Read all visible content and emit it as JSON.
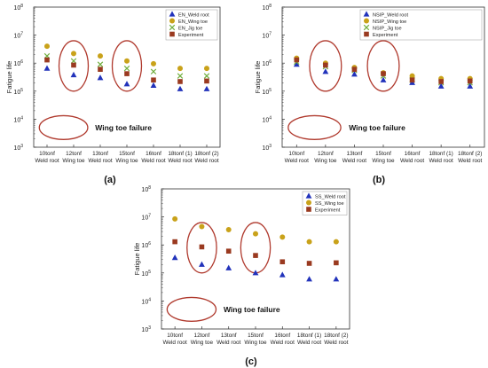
{
  "chart_data": [
    {
      "type": "scatter",
      "panel_label": "(a)",
      "ylabel": "Fatigue life",
      "yscale": "log",
      "ylim": [
        1000,
        100000000
      ],
      "categories": [
        [
          "10tonf",
          "Weld root"
        ],
        [
          "12tonf",
          "Wing toe"
        ],
        [
          "13tonf",
          "Weld root"
        ],
        [
          "15tonf",
          "Wing toe"
        ],
        [
          "16tonf",
          "Weld root"
        ],
        [
          "18tonf (1)",
          "Weld root"
        ],
        [
          "18tonf (2)",
          "Weld root"
        ]
      ],
      "series": [
        {
          "name": "EN_Weld root",
          "marker": "triangle",
          "color": "#2233bb",
          "values": [
            650000,
            380000,
            300000,
            180000,
            160000,
            120000,
            120000
          ]
        },
        {
          "name": "EN_Wing toe",
          "marker": "circle",
          "color": "#c9a21a",
          "values": [
            4000000,
            2200000,
            1800000,
            1200000,
            950000,
            650000,
            650000
          ]
        },
        {
          "name": "EN_Jig toe",
          "marker": "cross",
          "color": "#6fae3d",
          "values": [
            1800000,
            1200000,
            900000,
            650000,
            500000,
            350000,
            350000
          ]
        },
        {
          "name": "Experiment",
          "marker": "square",
          "color": "#9a3a20",
          "values": [
            1300000,
            850000,
            600000,
            420000,
            250000,
            220000,
            230000
          ]
        }
      ],
      "annotation": "Wing toe failure",
      "highlighted_categories": [
        1,
        3
      ],
      "legend_position": "top-right"
    },
    {
      "type": "scatter",
      "panel_label": "(b)",
      "ylabel": "Fatigue life",
      "yscale": "log",
      "ylim": [
        1000,
        100000000
      ],
      "categories": [
        [
          "10tonf",
          "Weld root"
        ],
        [
          "12tonf",
          "Wing toe"
        ],
        [
          "13tonf",
          "Weld root"
        ],
        [
          "15tonf",
          "Wing toe"
        ],
        [
          "16tonf",
          "Weld root"
        ],
        [
          "18tonf (1)",
          "Weld root"
        ],
        [
          "18tonf (2)",
          "Weld root"
        ]
      ],
      "series": [
        {
          "name": "NSIP_Weld root",
          "marker": "triangle",
          "color": "#2233bb",
          "values": [
            900000,
            500000,
            400000,
            250000,
            200000,
            150000,
            150000
          ]
        },
        {
          "name": "NSIP_Wing toe",
          "marker": "circle",
          "color": "#c9a21a",
          "values": [
            1500000,
            1000000,
            700000,
            450000,
            350000,
            280000,
            280000
          ]
        },
        {
          "name": "NSIP_Jig toe",
          "marker": "cross",
          "color": "#6fae3d",
          "values": [
            1100000,
            750000,
            550000,
            350000,
            250000,
            200000,
            200000
          ]
        },
        {
          "name": "Experiment",
          "marker": "square",
          "color": "#9a3a20",
          "values": [
            1300000,
            850000,
            600000,
            420000,
            250000,
            220000,
            230000
          ]
        }
      ],
      "annotation": "Wing toe failure",
      "highlighted_categories": [
        1,
        3
      ],
      "legend_position": "top-right"
    },
    {
      "type": "scatter",
      "panel_label": "(c)",
      "ylabel": "Fatigue life",
      "yscale": "log",
      "ylim": [
        1000,
        100000000
      ],
      "categories": [
        [
          "10tonf",
          "Weld root"
        ],
        [
          "12tonf",
          "Wing toe"
        ],
        [
          "13tonf",
          "Weld root"
        ],
        [
          "15tonf",
          "Wing toe"
        ],
        [
          "16tonf",
          "Weld root"
        ],
        [
          "18tonf (1)",
          "Weld root"
        ],
        [
          "18tonf (2)",
          "Weld root"
        ]
      ],
      "series": [
        {
          "name": "SS_Weld root",
          "marker": "triangle",
          "color": "#2233bb",
          "values": [
            350000,
            200000,
            150000,
            100000,
            85000,
            60000,
            60000
          ]
        },
        {
          "name": "SS_Wing toe",
          "marker": "circle",
          "color": "#c9a21a",
          "values": [
            8500000,
            4500000,
            3500000,
            2500000,
            1900000,
            1300000,
            1300000
          ]
        },
        {
          "name": "Experiment",
          "marker": "square",
          "color": "#9a3a20",
          "values": [
            1300000,
            850000,
            600000,
            420000,
            250000,
            220000,
            230000
          ]
        }
      ],
      "annotation": "Wing toe failure",
      "highlighted_categories": [
        1,
        3
      ],
      "legend_position": "top-right"
    }
  ]
}
